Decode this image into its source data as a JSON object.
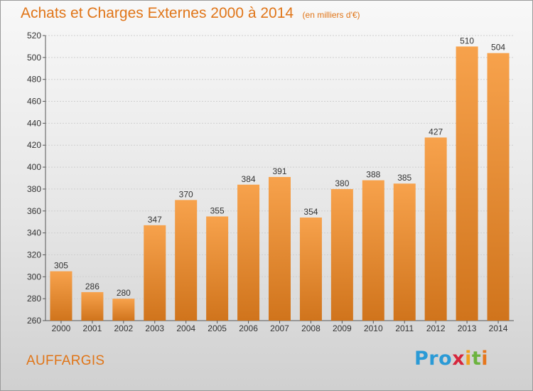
{
  "chart_data": {
    "type": "bar",
    "title": "Achats et Charges Externes 2000 à 2014",
    "subtitle": "(en milliers d'€)",
    "categories": [
      "2000",
      "2001",
      "2002",
      "2003",
      "2004",
      "2005",
      "2006",
      "2007",
      "2008",
      "2009",
      "2010",
      "2011",
      "2012",
      "2013",
      "2014"
    ],
    "values": [
      305,
      286,
      280,
      347,
      370,
      355,
      384,
      391,
      354,
      380,
      388,
      385,
      427,
      510,
      504
    ],
    "ylim": [
      260,
      520
    ],
    "yticks": [
      260,
      280,
      300,
      320,
      340,
      360,
      380,
      400,
      420,
      440,
      460,
      480,
      500,
      520
    ],
    "grid": true,
    "bar_color_top": "#f7a24c",
    "bar_color_bottom": "#d0741c"
  },
  "footer": {
    "place": "AUFFARGIS",
    "logo_letters": [
      "P",
      "r",
      "o",
      "x",
      "i",
      "t",
      "i"
    ]
  }
}
